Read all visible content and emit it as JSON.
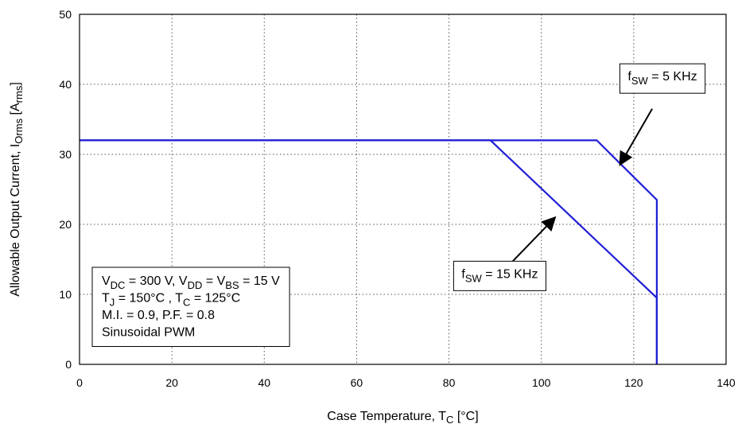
{
  "chart_data": {
    "type": "line",
    "xlabel": {
      "main": "Case Temperature, T",
      "sub": "C",
      "unit": " [°C]"
    },
    "ylabel": {
      "main": "Allowable Output Current, I",
      "sub": "Orms",
      "unit": " [A",
      "unit_sub": "rms",
      "unit_end": "]"
    },
    "xlim": [
      0,
      140
    ],
    "ylim": [
      0,
      50
    ],
    "x_ticks": [
      "0",
      "20",
      "40",
      "60",
      "80",
      "100",
      "120",
      "140"
    ],
    "y_ticks": [
      "0",
      "10",
      "20",
      "30",
      "40",
      "50"
    ],
    "grid": true,
    "series": [
      {
        "name": "fSW = 5 KHz",
        "color": "#1f1fd6",
        "points": [
          [
            0,
            32
          ],
          [
            112,
            32
          ],
          [
            125,
            23.5
          ],
          [
            125,
            0
          ]
        ]
      },
      {
        "name": "fSW = 15 KHz",
        "color": "#1f1fd6",
        "points": [
          [
            0,
            32
          ],
          [
            89,
            32
          ],
          [
            125,
            9.5
          ],
          [
            125,
            0
          ]
        ]
      }
    ],
    "annotations": [
      {
        "id": "f5",
        "parts": [
          [
            "f",
            "n"
          ],
          [
            "SW",
            "sub"
          ],
          [
            " = 5 KHz",
            "n"
          ]
        ],
        "box_anchor": [
          117,
          41
        ],
        "arrow_from": [
          124,
          36.5
        ],
        "arrow_to": [
          117,
          28.5
        ]
      },
      {
        "id": "f15",
        "parts": [
          [
            "f",
            "n"
          ],
          [
            "SW",
            "sub"
          ],
          [
            " = 15 KHz",
            "n"
          ]
        ],
        "box_anchor": [
          81,
          12.8
        ],
        "arrow_from": [
          92,
          13.5
        ],
        "arrow_to": [
          103,
          21
        ]
      }
    ],
    "conditions": [
      [
        [
          "V",
          "n"
        ],
        [
          "DC",
          "sub"
        ],
        [
          " = 300 V, V",
          "n"
        ],
        [
          "DD",
          "sub"
        ],
        [
          " = V",
          "n"
        ],
        [
          "BS",
          "sub"
        ],
        [
          " = 15 V",
          "n"
        ]
      ],
      [
        [
          "T",
          "n"
        ],
        [
          "J",
          "sub"
        ],
        [
          " = 150°C , T",
          "n"
        ],
        [
          "C",
          "sub"
        ],
        [
          " = 125°C",
          "n"
        ]
      ],
      [
        [
          "M.I. = 0.9, P.F. = 0.8",
          "n"
        ]
      ],
      [
        [
          "Sinusoidal PWM",
          "n"
        ]
      ]
    ]
  }
}
